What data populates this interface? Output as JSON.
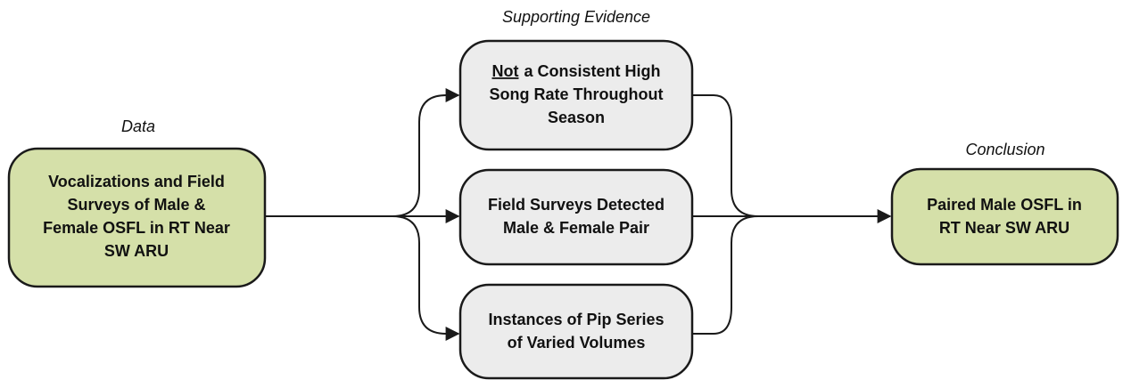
{
  "header_labels": {
    "data": "Data",
    "evidence": "Supporting Evidence",
    "conclusion": "Conclusion"
  },
  "data_node": {
    "lines": [
      "Vocalizations and Field",
      "Surveys of Male &",
      "Female OSFL in RT Near",
      "SW ARU"
    ]
  },
  "evidence_nodes": [
    {
      "emphasis": "Not",
      "lines": [
        "a Consistent High",
        "Song Rate Throughout",
        "Season"
      ]
    },
    {
      "lines": [
        "Field Surveys Detected",
        "Male & Female Pair"
      ]
    },
    {
      "lines": [
        "Instances of Pip Series",
        "of Varied Volumes"
      ]
    }
  ],
  "conclusion_node": {
    "lines": [
      "Paired Male OSFL in",
      "RT Near SW ARU"
    ]
  }
}
